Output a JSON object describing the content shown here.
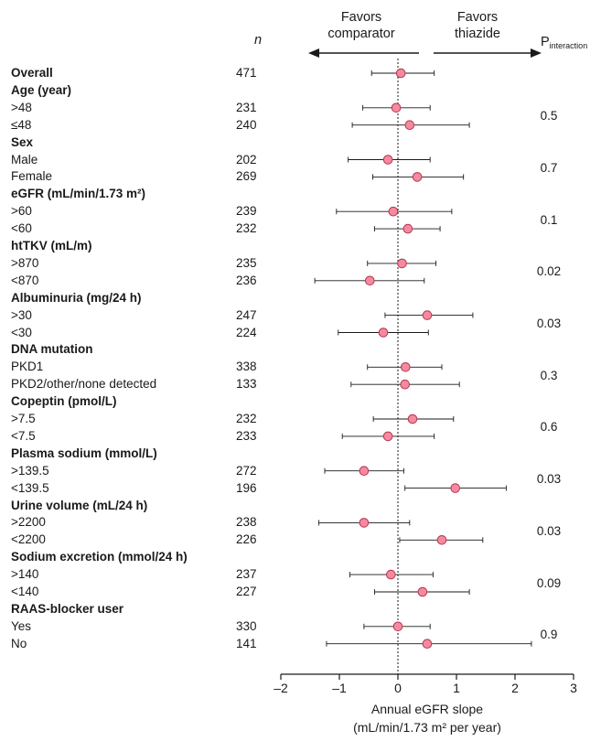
{
  "chart_data": {
    "type": "forest",
    "header_n": "n",
    "header_p": "P",
    "header_p_sub": "interaction",
    "favors_left": [
      "Favors",
      "comparator"
    ],
    "favors_right": [
      "Favors",
      "thiazide"
    ],
    "xlabel_line1": "Annual eGFR slope",
    "xlabel_line2": "(mL/min/1.73 m² per year)",
    "xlim": [
      -2,
      3
    ],
    "ticks": [
      "–2",
      "–1",
      "0",
      "1",
      "2",
      "3"
    ],
    "tick_values": [
      -2,
      -1,
      0,
      1,
      2,
      3
    ],
    "reference_line": 0,
    "rows": [
      {
        "label": "Overall",
        "bold": true,
        "n": "471",
        "est": 0.05,
        "lo": -0.45,
        "hi": 0.62
      },
      {
        "label": "Age (year)",
        "bold": true
      },
      {
        "label": ">48",
        "n": "231",
        "est": -0.03,
        "lo": -0.6,
        "hi": 0.55,
        "p": "0.5"
      },
      {
        "label": "≤48",
        "n": "240",
        "est": 0.2,
        "lo": -0.78,
        "hi": 1.22
      },
      {
        "label": "Sex",
        "bold": true
      },
      {
        "label": "Male",
        "n": "202",
        "est": -0.17,
        "lo": -0.85,
        "hi": 0.55,
        "p": "0.7"
      },
      {
        "label": "Female",
        "n": "269",
        "est": 0.33,
        "lo": -0.43,
        "hi": 1.12
      },
      {
        "label": "eGFR (mL/min/1.73 m²)",
        "bold": true
      },
      {
        "label": ">60",
        "n": "239",
        "est": -0.08,
        "lo": -1.05,
        "hi": 0.92,
        "p": "0.1"
      },
      {
        "label": "<60",
        "n": "232",
        "est": 0.17,
        "lo": -0.4,
        "hi": 0.72
      },
      {
        "label": "htTKV (mL/m)",
        "bold": true
      },
      {
        "label": ">870",
        "n": "235",
        "est": 0.07,
        "lo": -0.52,
        "hi": 0.65,
        "p": "0.02"
      },
      {
        "label": "<870",
        "n": "236",
        "est": -0.48,
        "lo": -1.42,
        "hi": 0.45
      },
      {
        "label": "Albuminuria (mg/24 h)",
        "bold": true
      },
      {
        "label": ">30",
        "n": "247",
        "est": 0.5,
        "lo": -0.22,
        "hi": 1.28,
        "p": "0.03"
      },
      {
        "label": "<30",
        "n": "224",
        "est": -0.25,
        "lo": -1.02,
        "hi": 0.52
      },
      {
        "label": "DNA mutation",
        "bold": true
      },
      {
        "label": "PKD1",
        "n": "338",
        "est": 0.13,
        "lo": -0.52,
        "hi": 0.75,
        "p": "0.3"
      },
      {
        "label": "PKD2/other/none detected",
        "n": "133",
        "est": 0.12,
        "lo": -0.8,
        "hi": 1.05
      },
      {
        "label": "Copeptin (pmol/L)",
        "bold": true
      },
      {
        "label": ">7.5",
        "n": "232",
        "est": 0.25,
        "lo": -0.42,
        "hi": 0.95,
        "p": "0.6"
      },
      {
        "label": "<7.5",
        "n": "233",
        "est": -0.17,
        "lo": -0.95,
        "hi": 0.62
      },
      {
        "label": "Plasma sodium (mmol/L)",
        "bold": true
      },
      {
        "label": ">139.5",
        "n": "272",
        "est": -0.58,
        "lo": -1.25,
        "hi": 0.1,
        "p": "0.03"
      },
      {
        "label": "<139.5",
        "n": "196",
        "est": 0.98,
        "lo": 0.12,
        "hi": 1.85
      },
      {
        "label": "Urine volume (mL/24 h)",
        "bold": true
      },
      {
        "label": ">2200",
        "n": "238",
        "est": -0.58,
        "lo": -1.35,
        "hi": 0.2,
        "p": "0.03"
      },
      {
        "label": "<2200",
        "n": "226",
        "est": 0.75,
        "lo": 0.03,
        "hi": 1.45
      },
      {
        "label": "Sodium excretion (mmol/24 h)",
        "bold": true
      },
      {
        "label": ">140",
        "n": "237",
        "est": -0.12,
        "lo": -0.82,
        "hi": 0.6,
        "p": "0.09"
      },
      {
        "label": "<140",
        "n": "227",
        "est": 0.42,
        "lo": -0.4,
        "hi": 1.22
      },
      {
        "label": "RAAS-blocker user",
        "bold": true
      },
      {
        "label": "Yes",
        "n": "330",
        "est": 0.0,
        "lo": -0.58,
        "hi": 0.55,
        "p": "0.9"
      },
      {
        "label": "No",
        "n": "141",
        "est": 0.5,
        "lo": -1.22,
        "hi": 2.28
      }
    ],
    "marker_color": "#f48aa0",
    "marker_edge": "#b8354f"
  }
}
